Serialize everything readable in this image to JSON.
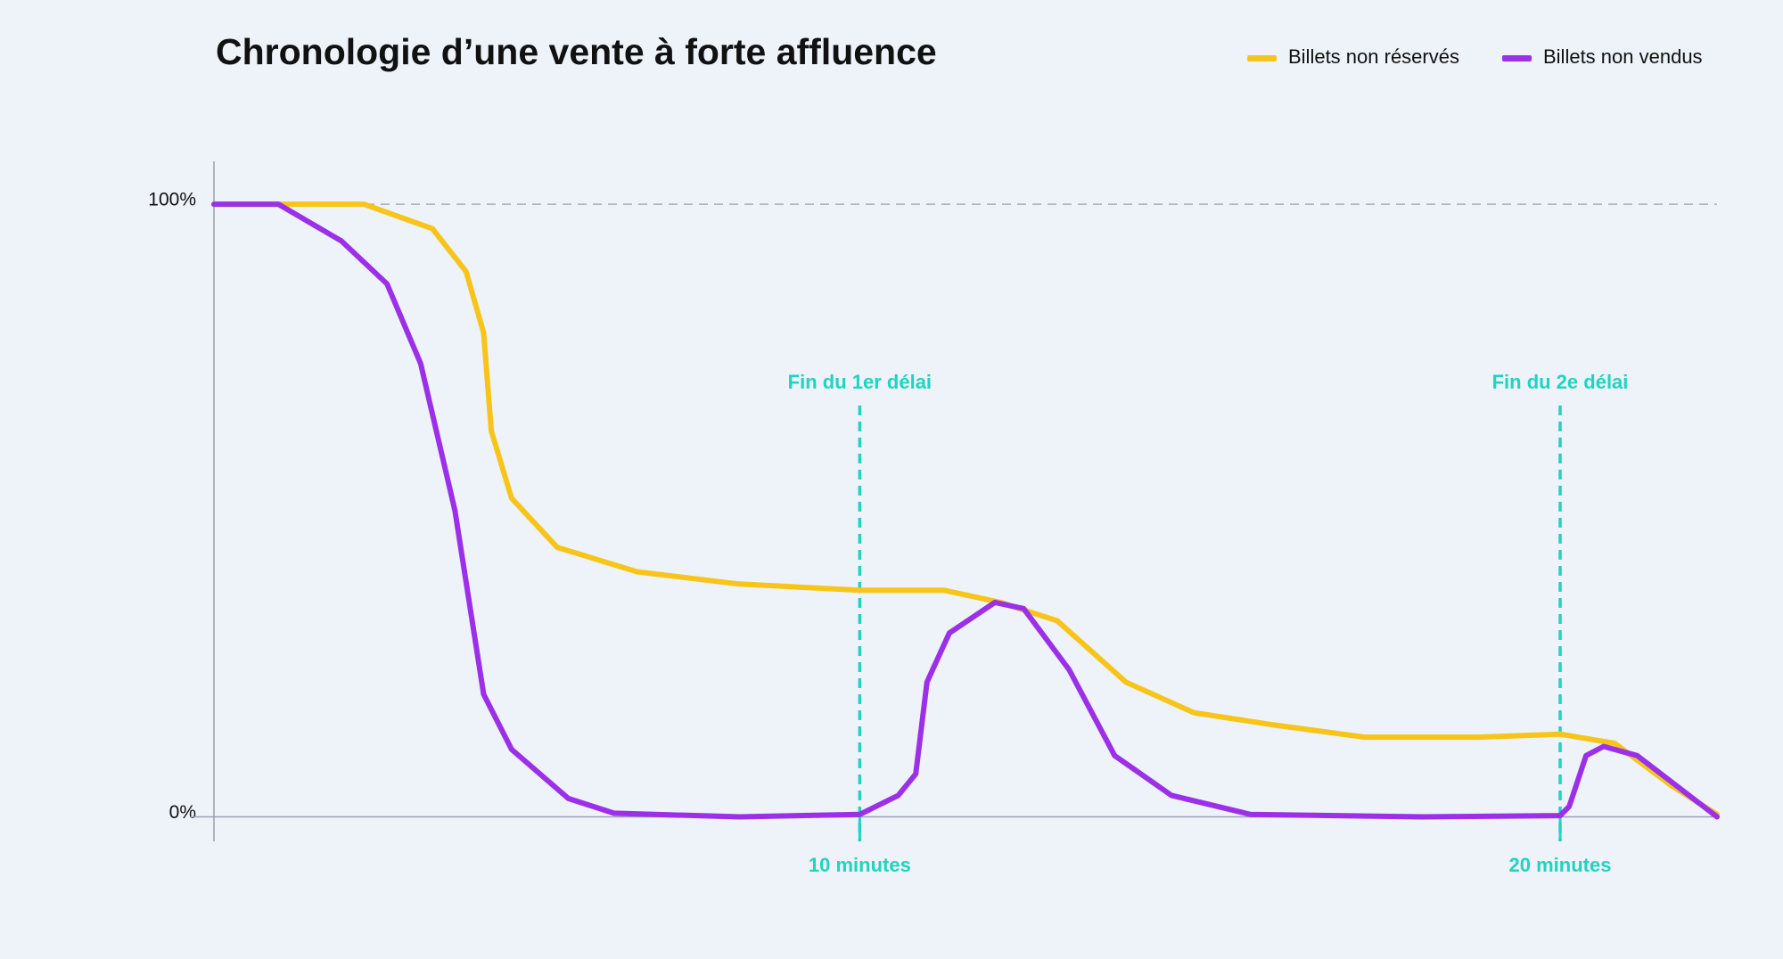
{
  "chart_data": {
    "type": "line",
    "title": "Chronologie d’une vente à forte affluence",
    "xlim": [
      0.78,
      22.24
    ],
    "ylim": [
      -4,
      107
    ],
    "xticks": [
      {
        "value": 10,
        "label": "10 minutes"
      },
      {
        "value": 20,
        "label": "20 minutes"
      }
    ],
    "yticks": [
      {
        "value": 100,
        "label": "100%"
      },
      {
        "value": 0,
        "label": "0%"
      }
    ],
    "annotations": [
      {
        "x": 10,
        "label": "Fin du 1er délai"
      },
      {
        "x": 20,
        "label": "Fin du 2e délai"
      }
    ],
    "annotation_color": "#1fd4c0",
    "series": [
      {
        "name": "Billets non réservés",
        "color": "#f7c51a",
        "x": [
          0.78,
          1.79,
          2.92,
          3.9,
          4.38,
          4.63,
          4.74,
          5.03,
          5.68,
          6.82,
          8.28,
          10,
          11.2,
          12.01,
          12.82,
          13.8,
          14.77,
          15.91,
          17.21,
          18.83,
          20,
          20.78,
          21.6,
          22.24
        ],
        "values": [
          100,
          100,
          100,
          96,
          89,
          79,
          63,
          52,
          44,
          40,
          38,
          37,
          37,
          35,
          32,
          22,
          17,
          15,
          13,
          13,
          13.5,
          12,
          5,
          0.4
        ]
      },
      {
        "name": "Billets non vendus",
        "color": "#9b30e8",
        "x": [
          0.78,
          1.7,
          2.6,
          3.25,
          3.73,
          4.22,
          4.63,
          5.03,
          5.84,
          6.49,
          8.28,
          10,
          10.55,
          10.8,
          10.96,
          11.28,
          11.93,
          12.34,
          12.99,
          13.64,
          14.45,
          15.58,
          18.02,
          20,
          20.13,
          20.37,
          20.62,
          21.1,
          22.24
        ],
        "values": [
          100,
          100,
          94,
          87,
          74,
          50,
          20,
          11,
          3,
          0.6,
          0,
          0.4,
          3.5,
          7,
          22,
          30,
          35,
          34,
          24,
          10,
          3.5,
          0.4,
          0,
          0.2,
          1.7,
          10,
          11.5,
          10,
          0
        ]
      }
    ]
  }
}
